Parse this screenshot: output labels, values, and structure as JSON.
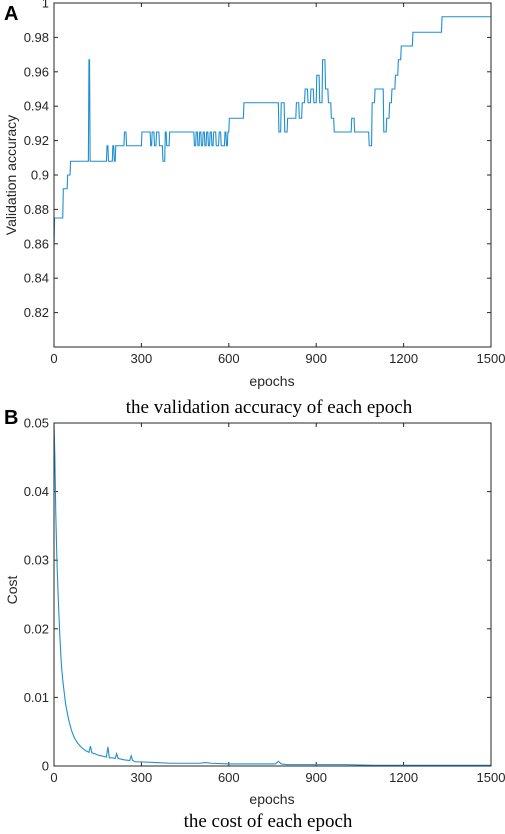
{
  "chart_data": [
    {
      "type": "line",
      "panel_letter": "A",
      "caption": "the validation accuracy of each epoch",
      "xlabel": "epochs",
      "ylabel": "Validation accuracy",
      "xlim": [
        0,
        1500
      ],
      "ylim": [
        0.8,
        1.0
      ],
      "xticks": [
        0,
        300,
        600,
        900,
        1200,
        1500
      ],
      "yticks": [
        0.82,
        0.84,
        0.86,
        0.88,
        0.9,
        0.92,
        0.94,
        0.96,
        0.98,
        1
      ],
      "ytick_labels": [
        "0.82",
        "0.84",
        "0.86",
        "0.88",
        "0.9",
        "0.92",
        "0.94",
        "0.96",
        "0.98",
        "1"
      ],
      "grid": false,
      "series": [
        {
          "color": "#1f8fd0",
          "x": [
            0,
            2,
            5,
            8,
            10,
            30,
            32,
            45,
            47,
            55,
            57,
            70,
            72,
            118,
            120,
            122,
            124,
            126,
            128,
            180,
            182,
            185,
            187,
            200,
            202,
            205,
            207,
            210,
            212,
            240,
            242,
            247,
            249,
            300,
            302,
            330,
            332,
            335,
            337,
            343,
            345,
            350,
            352,
            360,
            362,
            372,
            374,
            380,
            382,
            385,
            387,
            395,
            397,
            480,
            482,
            486,
            488,
            492,
            494,
            498,
            500,
            504,
            506,
            510,
            512,
            516,
            518,
            522,
            524,
            528,
            530,
            534,
            536,
            540,
            542,
            546,
            548,
            555,
            557,
            565,
            567,
            572,
            574,
            585,
            587,
            590,
            592,
            595,
            597,
            600,
            602,
            650,
            652,
            770,
            772,
            778,
            780,
            790,
            792,
            800,
            802,
            830,
            832,
            840,
            842,
            850,
            852,
            860,
            862,
            870,
            872,
            880,
            882,
            890,
            892,
            900,
            902,
            910,
            912,
            920,
            922,
            930,
            932,
            940,
            942,
            950,
            952,
            960,
            962,
            975,
            977,
            1020,
            1022,
            1030,
            1032,
            1040,
            1042,
            1080,
            1082,
            1090,
            1092,
            1100,
            1102,
            1130,
            1132,
            1140,
            1142,
            1150,
            1152,
            1158,
            1160,
            1170,
            1172,
            1180,
            1182,
            1190,
            1192,
            1230,
            1232,
            1330,
            1332,
            1500
          ],
          "y": [
            0.858,
            0.875,
            0.875,
            0.875,
            0.875,
            0.875,
            0.892,
            0.892,
            0.9,
            0.9,
            0.908,
            0.908,
            0.908,
            0.908,
            0.967,
            0.967,
            0.908,
            0.908,
            0.908,
            0.908,
            0.917,
            0.917,
            0.908,
            0.908,
            0.917,
            0.917,
            0.908,
            0.908,
            0.917,
            0.917,
            0.925,
            0.925,
            0.917,
            0.917,
            0.925,
            0.925,
            0.917,
            0.917,
            0.925,
            0.925,
            0.917,
            0.917,
            0.925,
            0.925,
            0.917,
            0.917,
            0.908,
            0.908,
            0.925,
            0.925,
            0.917,
            0.917,
            0.925,
            0.925,
            0.917,
            0.917,
            0.925,
            0.925,
            0.917,
            0.917,
            0.925,
            0.925,
            0.917,
            0.917,
            0.925,
            0.925,
            0.917,
            0.917,
            0.925,
            0.925,
            0.917,
            0.917,
            0.925,
            0.925,
            0.917,
            0.917,
            0.925,
            0.925,
            0.917,
            0.917,
            0.925,
            0.925,
            0.917,
            0.917,
            0.925,
            0.925,
            0.917,
            0.917,
            0.925,
            0.925,
            0.933,
            0.933,
            0.942,
            0.942,
            0.925,
            0.925,
            0.942,
            0.942,
            0.925,
            0.925,
            0.933,
            0.933,
            0.942,
            0.942,
            0.933,
            0.933,
            0.942,
            0.942,
            0.95,
            0.95,
            0.942,
            0.942,
            0.95,
            0.95,
            0.942,
            0.942,
            0.958,
            0.958,
            0.942,
            0.942,
            0.967,
            0.967,
            0.95,
            0.95,
            0.942,
            0.942,
            0.933,
            0.933,
            0.925,
            0.925,
            0.925,
            0.925,
            0.933,
            0.933,
            0.925,
            0.925,
            0.925,
            0.925,
            0.917,
            0.917,
            0.942,
            0.942,
            0.95,
            0.95,
            0.925,
            0.925,
            0.933,
            0.933,
            0.942,
            0.942,
            0.95,
            0.95,
            0.958,
            0.958,
            0.967,
            0.967,
            0.975,
            0.975,
            0.983,
            0.983,
            0.992,
            0.992
          ]
        }
      ]
    },
    {
      "type": "line",
      "panel_letter": "B",
      "caption": "the cost of each epoch",
      "xlabel": "epochs",
      "ylabel": "Cost",
      "xlim": [
        0,
        1500
      ],
      "ylim": [
        0,
        0.05
      ],
      "xticks": [
        0,
        300,
        600,
        900,
        1200,
        1500
      ],
      "yticks": [
        0,
        0.01,
        0.02,
        0.03,
        0.04,
        0.05
      ],
      "ytick_labels": [
        "0",
        "0.01",
        "0.02",
        "0.03",
        "0.04",
        "0.05"
      ],
      "grid": false,
      "series": [
        {
          "color": "#1f8fd0",
          "x": [
            0,
            3,
            6,
            10,
            15,
            20,
            25,
            30,
            40,
            50,
            60,
            70,
            80,
            90,
            100,
            110,
            120,
            125,
            130,
            140,
            150,
            160,
            170,
            180,
            185,
            190,
            200,
            210,
            215,
            220,
            240,
            260,
            265,
            270,
            280,
            300,
            350,
            400,
            450,
            500,
            520,
            540,
            600,
            700,
            760,
            770,
            780,
            800,
            900,
            1000,
            1100,
            1200,
            1300,
            1400,
            1500
          ],
          "y": [
            0.05,
            0.045,
            0.037,
            0.03,
            0.024,
            0.019,
            0.015,
            0.0125,
            0.009,
            0.0068,
            0.0052,
            0.0041,
            0.0034,
            0.0029,
            0.0025,
            0.0022,
            0.002,
            0.0029,
            0.0019,
            0.0018,
            0.0016,
            0.0015,
            0.0014,
            0.0013,
            0.0028,
            0.0012,
            0.0012,
            0.0011,
            0.0018,
            0.0011,
            0.0009,
            0.0008,
            0.0015,
            0.0008,
            0.0006,
            0.0006,
            0.0005,
            0.0004,
            0.0004,
            0.0004,
            0.0005,
            0.0004,
            0.0003,
            0.0003,
            0.0003,
            0.0007,
            0.0003,
            0.0002,
            0.0002,
            0.0002,
            0.0001,
            0.0001,
            0.0001,
            0.0001,
            0.0001
          ]
        }
      ]
    }
  ]
}
